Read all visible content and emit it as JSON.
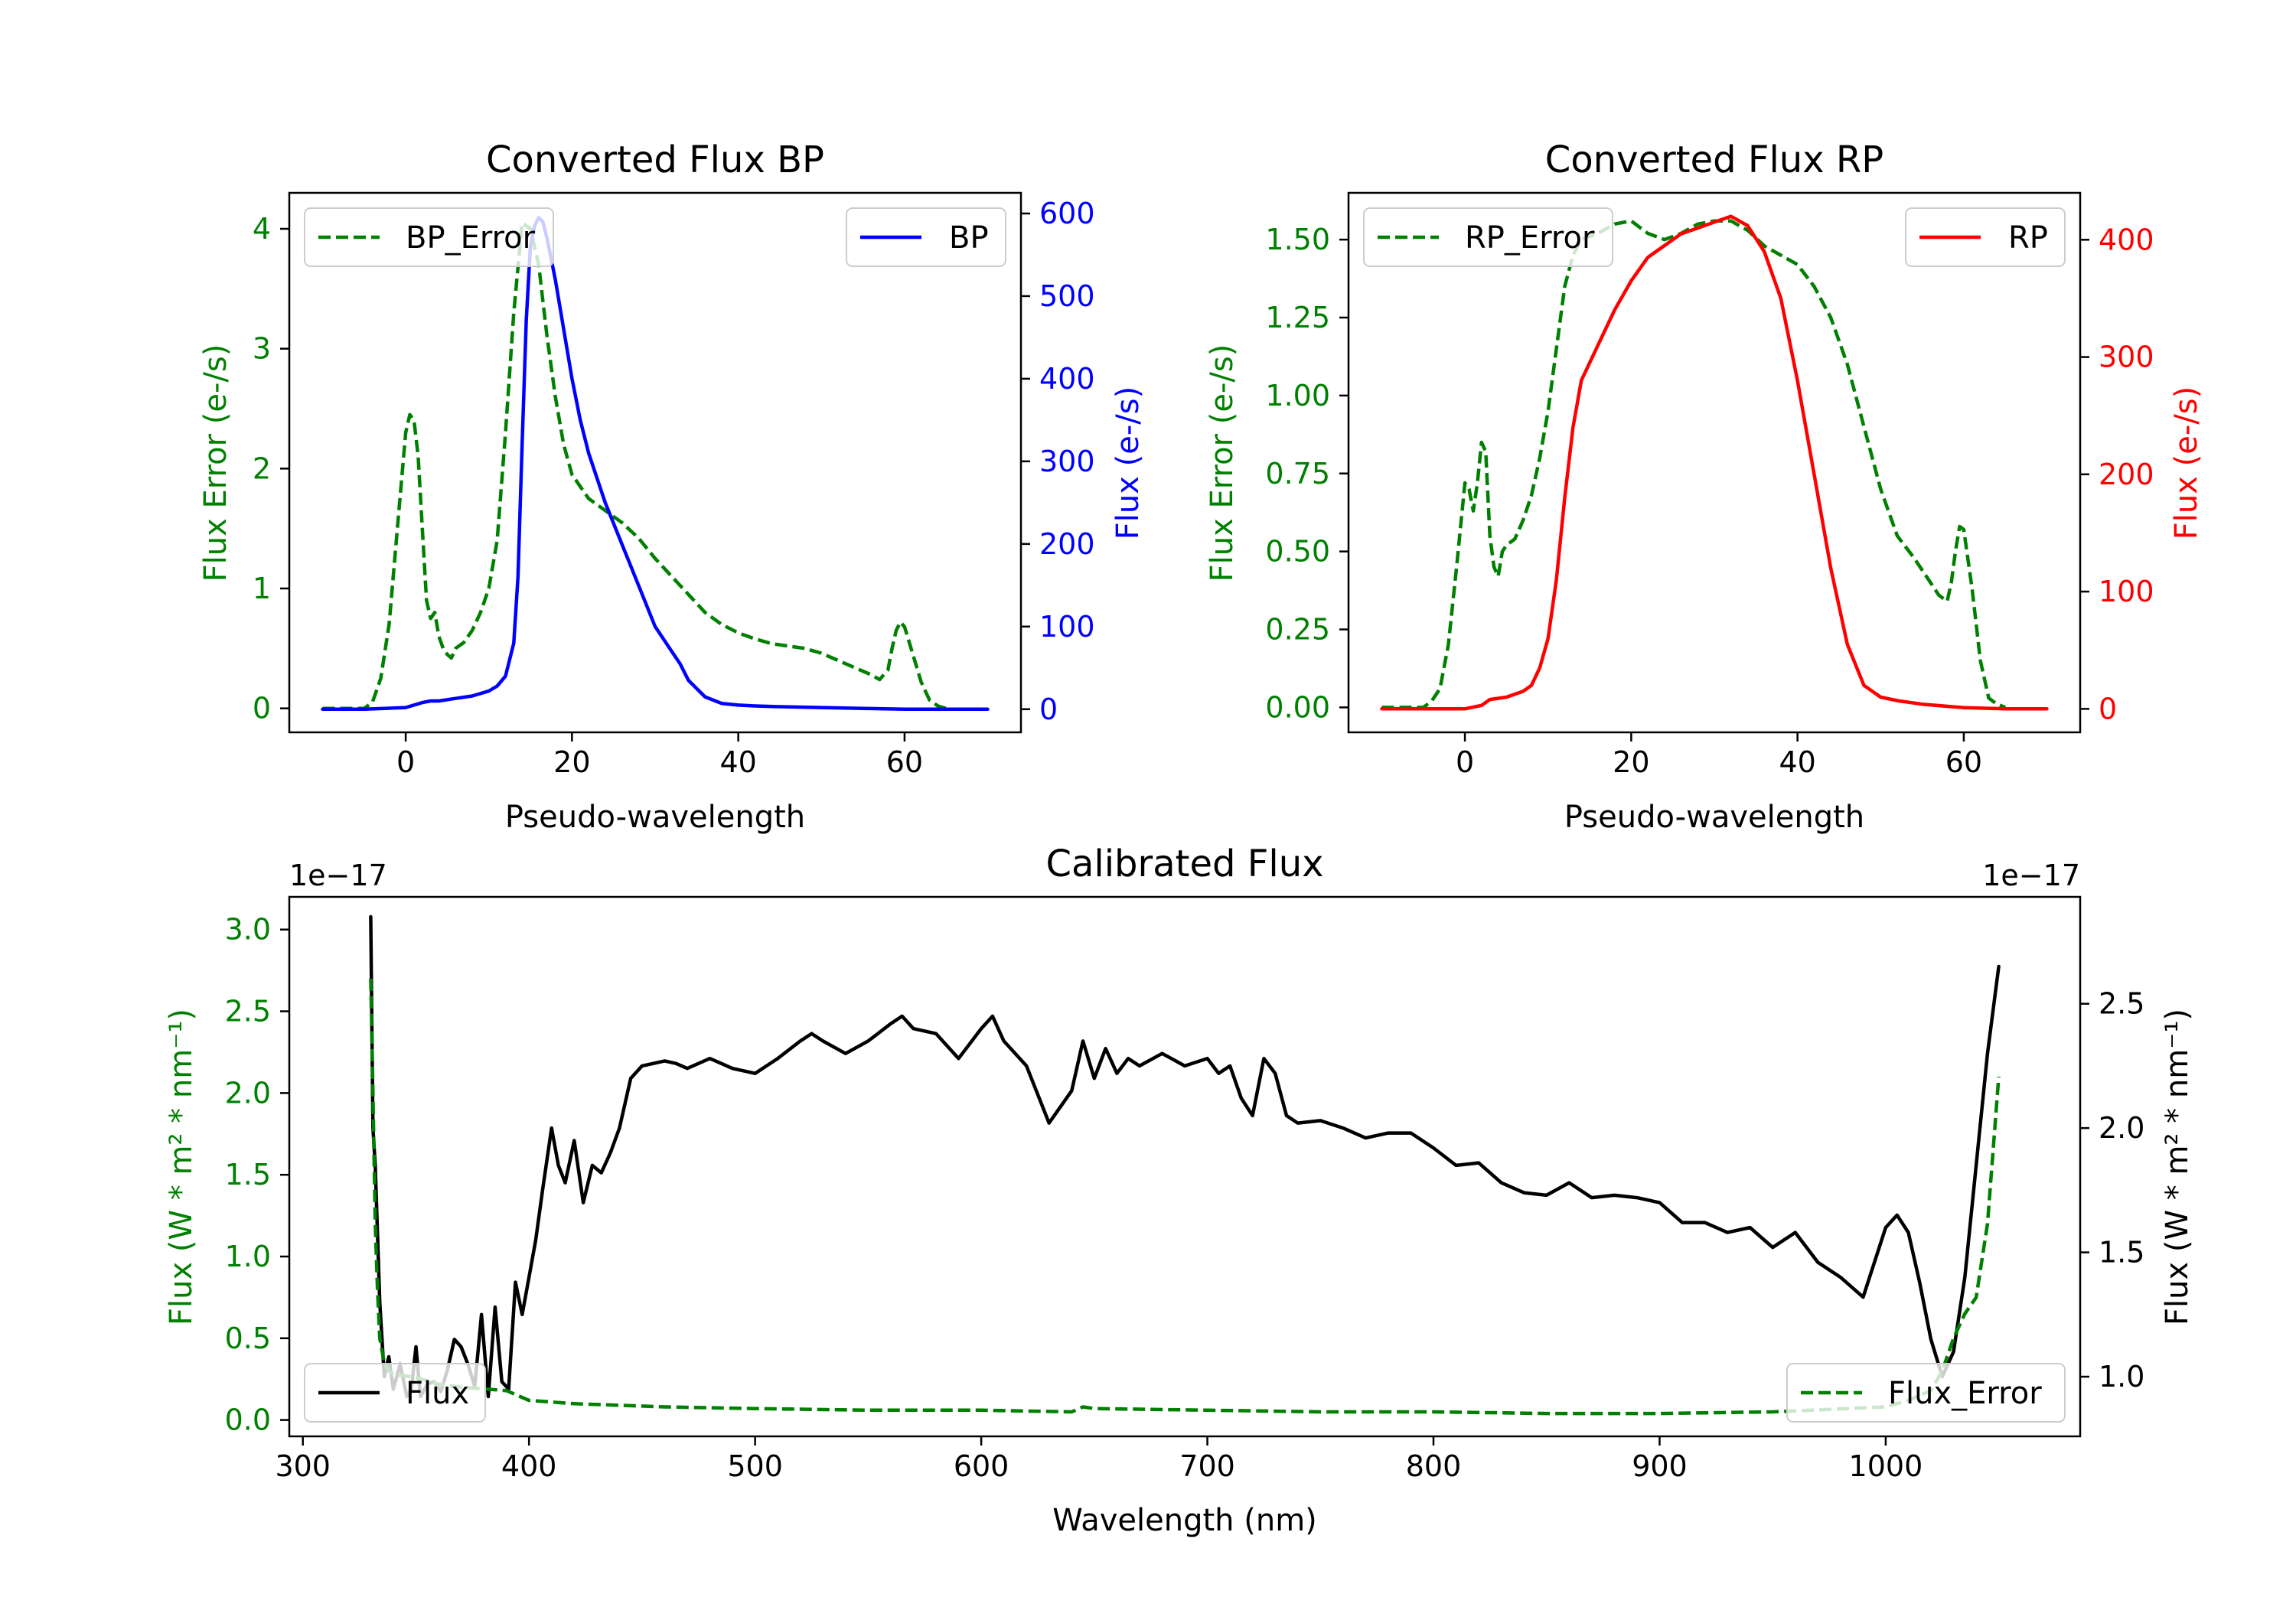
{
  "colors": {
    "green": "#008000",
    "blue": "#0000ff",
    "red": "#ff0000",
    "black": "#000000",
    "legend_border": "#cccccc"
  },
  "chart_data": [
    {
      "id": "bp",
      "type": "line",
      "title": "Converted Flux BP",
      "xlabel": "Pseudo-wavelength",
      "ylabel_left": "Flux Error (e-/s)",
      "ylabel_right": "Flux (e-/s)",
      "xlim": [
        -14,
        74
      ],
      "ylim_left": [
        -0.2,
        4.3
      ],
      "ylim_right": [
        -28,
        625
      ],
      "xticks": [
        "0",
        "20",
        "40",
        "60"
      ],
      "xtick_values": [
        0,
        20,
        40,
        60
      ],
      "yticks_left": [
        "0",
        "1",
        "2",
        "3",
        "4"
      ],
      "ytick_values_left": [
        0,
        1,
        2,
        3,
        4
      ],
      "yticks_right": [
        "0",
        "100",
        "200",
        "300",
        "400",
        "500",
        "600"
      ],
      "ytick_values_right": [
        0,
        100,
        200,
        300,
        400,
        500,
        600
      ],
      "series": [
        {
          "name": "BP_Error",
          "axis": "left",
          "style": "dashed",
          "color": "#008000",
          "x": [
            -10,
            -5,
            -4,
            -3,
            -2,
            -1,
            0,
            0.5,
            1,
            1.5,
            2,
            2.5,
            3,
            3.5,
            4,
            4.5,
            5,
            5.5,
            6,
            7,
            8,
            9,
            10,
            11,
            12,
            13,
            14,
            15,
            16,
            16.5,
            17,
            18,
            19,
            20,
            21,
            22,
            24,
            26,
            28,
            30,
            32,
            34,
            36,
            38,
            40,
            42,
            44,
            46,
            48,
            50,
            52,
            54,
            56,
            57,
            58,
            58.5,
            59,
            59.5,
            60,
            61,
            62,
            63,
            64,
            65
          ],
          "y": [
            0,
            0,
            0.05,
            0.25,
            0.7,
            1.5,
            2.3,
            2.45,
            2.4,
            2.1,
            1.5,
            0.9,
            0.75,
            0.8,
            0.6,
            0.5,
            0.45,
            0.42,
            0.5,
            0.55,
            0.65,
            0.8,
            1.0,
            1.4,
            2.3,
            3.3,
            4.05,
            4.0,
            3.7,
            3.4,
            3.1,
            2.6,
            2.2,
            1.95,
            1.85,
            1.75,
            1.65,
            1.55,
            1.42,
            1.25,
            1.1,
            0.95,
            0.8,
            0.7,
            0.63,
            0.58,
            0.54,
            0.52,
            0.5,
            0.46,
            0.4,
            0.34,
            0.28,
            0.24,
            0.32,
            0.5,
            0.65,
            0.72,
            0.68,
            0.45,
            0.22,
            0.07,
            0.02,
            0
          ]
        },
        {
          "name": "BP",
          "axis": "right",
          "style": "solid",
          "color": "#0000ff",
          "x": [
            -10,
            -5,
            0,
            2,
            3,
            4,
            6,
            8,
            10,
            11,
            12,
            13,
            13.5,
            14,
            14.5,
            15,
            15.5,
            16,
            16.5,
            17,
            18,
            19,
            20,
            21,
            22,
            24,
            26,
            28,
            30,
            32,
            33,
            34,
            36,
            38,
            40,
            42,
            45,
            50,
            55,
            60,
            65,
            70
          ],
          "y": [
            0,
            0,
            2,
            8,
            10,
            10,
            13,
            16,
            22,
            28,
            40,
            80,
            160,
            320,
            470,
            560,
            585,
            595,
            590,
            570,
            520,
            460,
            400,
            350,
            310,
            250,
            200,
            150,
            100,
            70,
            55,
            35,
            15,
            7,
            5,
            4,
            3,
            2,
            1,
            0,
            0,
            0
          ]
        }
      ],
      "legend": [
        {
          "label": "BP_Error",
          "position": "upper-left"
        },
        {
          "label": "BP",
          "position": "upper-right"
        }
      ]
    },
    {
      "id": "rp",
      "type": "line",
      "title": "Converted Flux RP",
      "xlabel": "Pseudo-wavelength",
      "ylabel_left": "Flux Error (e-/s)",
      "ylabel_right": "Flux (e-/s)",
      "xlim": [
        -14,
        74
      ],
      "ylim_left": [
        -0.08,
        1.65
      ],
      "ylim_right": [
        -20,
        440
      ],
      "xticks": [
        "0",
        "20",
        "40",
        "60"
      ],
      "xtick_values": [
        0,
        20,
        40,
        60
      ],
      "yticks_left": [
        "0.00",
        "0.25",
        "0.50",
        "0.75",
        "1.00",
        "1.25",
        "1.50"
      ],
      "ytick_values_left": [
        0,
        0.25,
        0.5,
        0.75,
        1.0,
        1.25,
        1.5
      ],
      "yticks_right": [
        "0",
        "100",
        "200",
        "300",
        "400"
      ],
      "ytick_values_right": [
        0,
        100,
        200,
        300,
        400
      ],
      "series": [
        {
          "name": "RP_Error",
          "axis": "left",
          "style": "dashed",
          "color": "#008000",
          "x": [
            -10,
            -5,
            -4,
            -3,
            -2,
            -1,
            0,
            0.5,
            1,
            1.5,
            2,
            2.5,
            3,
            3.5,
            4,
            4.5,
            5,
            6,
            7,
            8,
            9,
            10,
            11,
            12,
            13,
            14,
            16,
            18,
            20,
            22,
            24,
            26,
            28,
            30,
            32,
            34,
            36,
            38,
            40,
            42,
            44,
            46,
            48,
            50,
            52,
            54,
            56,
            57,
            58,
            58.5,
            59,
            59.5,
            60,
            61,
            62,
            63,
            64,
            65
          ],
          "y": [
            0,
            0,
            0.02,
            0.06,
            0.2,
            0.45,
            0.72,
            0.7,
            0.63,
            0.72,
            0.85,
            0.82,
            0.55,
            0.45,
            0.42,
            0.5,
            0.52,
            0.54,
            0.6,
            0.68,
            0.8,
            0.95,
            1.15,
            1.35,
            1.45,
            1.5,
            1.52,
            1.55,
            1.56,
            1.52,
            1.5,
            1.52,
            1.55,
            1.56,
            1.56,
            1.53,
            1.48,
            1.45,
            1.42,
            1.35,
            1.25,
            1.1,
            0.9,
            0.7,
            0.55,
            0.48,
            0.4,
            0.36,
            0.34,
            0.4,
            0.5,
            0.58,
            0.57,
            0.38,
            0.15,
            0.03,
            0.01,
            0
          ]
        },
        {
          "name": "RP",
          "axis": "right",
          "style": "solid",
          "color": "#ff0000",
          "x": [
            -10,
            -5,
            0,
            2,
            3,
            5,
            7,
            8,
            9,
            10,
            11,
            12,
            13,
            14,
            16,
            18,
            20,
            22,
            24,
            26,
            28,
            30,
            32,
            34,
            36,
            38,
            40,
            42,
            44,
            46,
            48,
            50,
            52,
            55,
            60,
            65,
            70
          ],
          "y": [
            0,
            0,
            0,
            3,
            8,
            10,
            15,
            20,
            35,
            60,
            110,
            180,
            240,
            280,
            310,
            340,
            365,
            385,
            395,
            405,
            410,
            415,
            420,
            412,
            390,
            350,
            280,
            200,
            120,
            55,
            20,
            10,
            7,
            4,
            1,
            0,
            0
          ]
        }
      ],
      "legend": [
        {
          "label": "RP_Error",
          "position": "upper-left"
        },
        {
          "label": "RP",
          "position": "upper-right"
        }
      ]
    },
    {
      "id": "cal",
      "type": "line",
      "title": "Calibrated Flux",
      "xlabel": "Wavelength (nm)",
      "ylabel_left": "Flux (W * m² * nm⁻¹)",
      "ylabel_right": "Flux (W * m² * nm⁻¹)",
      "offset_left": "1e−17",
      "offset_right": "1e−17",
      "xlim": [
        294,
        1086
      ],
      "ylim_left": [
        -0.1,
        3.2
      ],
      "ylim_right": [
        0.76,
        2.93
      ],
      "xticks": [
        "300",
        "400",
        "500",
        "600",
        "700",
        "800",
        "900",
        "1000"
      ],
      "xtick_values": [
        300,
        400,
        500,
        600,
        700,
        800,
        900,
        1000
      ],
      "yticks_left": [
        "0.0",
        "0.5",
        "1.0",
        "1.5",
        "2.0",
        "2.5",
        "3.0"
      ],
      "ytick_values_left": [
        0,
        0.5,
        1.0,
        1.5,
        2.0,
        2.5,
        3.0
      ],
      "yticks_right": [
        "1.0",
        "1.5",
        "2.0",
        "2.5"
      ],
      "ytick_values_right": [
        1.0,
        1.5,
        2.0,
        2.5
      ],
      "series": [
        {
          "name": "Flux",
          "axis": "right",
          "style": "solid",
          "color": "#000000",
          "x": [
            330,
            331,
            332,
            334,
            336,
            338,
            340,
            343,
            346,
            348,
            350,
            352,
            355,
            358,
            361,
            364,
            367,
            370,
            373,
            376,
            379,
            382,
            385,
            388,
            391,
            394,
            397,
            400,
            403,
            406,
            410,
            413,
            416,
            420,
            424,
            428,
            432,
            436,
            440,
            445,
            450,
            455,
            460,
            465,
            470,
            480,
            490,
            500,
            510,
            520,
            525,
            530,
            540,
            550,
            560,
            565,
            570,
            580,
            590,
            600,
            605,
            610,
            620,
            630,
            640,
            645,
            650,
            655,
            660,
            665,
            670,
            680,
            690,
            700,
            705,
            710,
            715,
            720,
            725,
            730,
            735,
            740,
            750,
            760,
            770,
            780,
            790,
            800,
            810,
            820,
            830,
            840,
            850,
            860,
            870,
            880,
            890,
            900,
            910,
            920,
            930,
            940,
            950,
            960,
            970,
            980,
            990,
            1000,
            1005,
            1010,
            1015,
            1020,
            1025,
            1030,
            1035,
            1040,
            1045,
            1050
          ],
          "y": [
            2.85,
            2.0,
            1.85,
            1.3,
            1.0,
            1.08,
            0.95,
            1.05,
            0.92,
            0.95,
            1.12,
            0.92,
            0.97,
            0.98,
            0.94,
            1.03,
            1.15,
            1.12,
            1.05,
            0.96,
            1.25,
            0.92,
            1.28,
            0.98,
            0.95,
            1.38,
            1.25,
            1.4,
            1.55,
            1.75,
            2.0,
            1.85,
            1.78,
            1.95,
            1.7,
            1.85,
            1.82,
            1.9,
            2.0,
            2.2,
            2.25,
            2.26,
            2.27,
            2.26,
            2.24,
            2.28,
            2.24,
            2.22,
            2.28,
            2.35,
            2.38,
            2.35,
            2.3,
            2.35,
            2.42,
            2.45,
            2.4,
            2.38,
            2.28,
            2.4,
            2.45,
            2.35,
            2.25,
            2.02,
            2.15,
            2.35,
            2.2,
            2.32,
            2.22,
            2.28,
            2.25,
            2.3,
            2.25,
            2.28,
            2.22,
            2.25,
            2.12,
            2.05,
            2.28,
            2.22,
            2.05,
            2.02,
            2.03,
            2.0,
            1.96,
            1.98,
            1.98,
            1.92,
            1.85,
            1.86,
            1.78,
            1.74,
            1.73,
            1.78,
            1.72,
            1.73,
            1.72,
            1.7,
            1.62,
            1.62,
            1.58,
            1.6,
            1.52,
            1.58,
            1.46,
            1.4,
            1.32,
            1.6,
            1.65,
            1.58,
            1.38,
            1.15,
            1.0,
            1.1,
            1.4,
            1.85,
            2.3,
            2.65
          ],
          "show_in_legend": true
        },
        {
          "name": "Flux_Error",
          "axis": "left",
          "style": "dashed",
          "color": "#008000",
          "x": [
            330,
            331,
            332,
            333,
            334,
            336,
            338,
            340,
            345,
            350,
            360,
            370,
            380,
            390,
            400,
            420,
            440,
            460,
            500,
            550,
            600,
            640,
            645,
            650,
            700,
            750,
            800,
            850,
            900,
            950,
            1000,
            1010,
            1020,
            1025,
            1030,
            1035,
            1040,
            1045,
            1050
          ],
          "y": [
            2.7,
            2.0,
            1.2,
            0.8,
            0.5,
            0.35,
            0.3,
            0.28,
            0.27,
            0.26,
            0.22,
            0.2,
            0.19,
            0.18,
            0.12,
            0.1,
            0.09,
            0.08,
            0.07,
            0.06,
            0.06,
            0.05,
            0.08,
            0.07,
            0.06,
            0.05,
            0.05,
            0.04,
            0.04,
            0.05,
            0.08,
            0.12,
            0.18,
            0.3,
            0.5,
            0.65,
            0.75,
            1.2,
            2.1
          ],
          "show_in_legend": true
        }
      ],
      "legend": [
        {
          "label": "Flux",
          "position": "lower-left"
        },
        {
          "label": "Flux_Error",
          "position": "lower-right"
        }
      ]
    }
  ]
}
